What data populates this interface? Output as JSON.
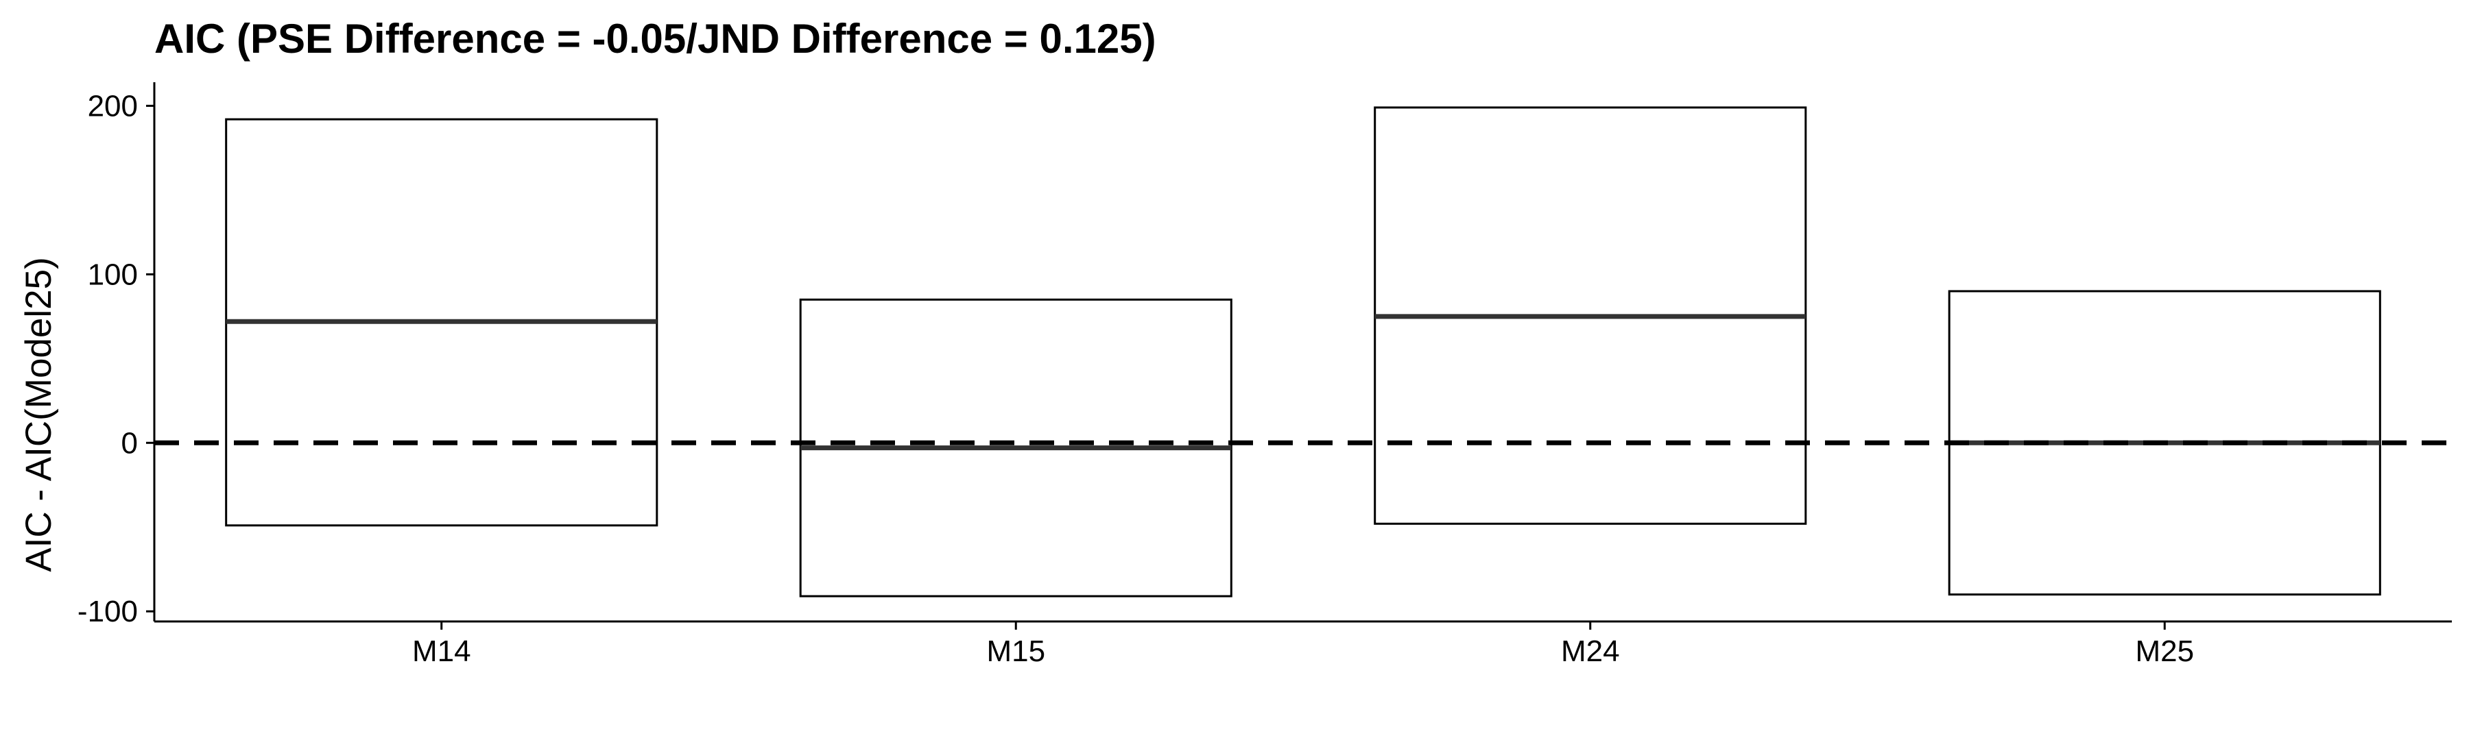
{
  "chart_data": {
    "type": "boxplot",
    "title": "AIC (PSE Difference = -0.05/JND Difference = 0.125)",
    "xlabel": "",
    "ylabel": "AIC - AIC(Model25)",
    "categories": [
      "M14",
      "M15",
      "M24",
      "M25"
    ],
    "boxes": [
      {
        "category": "M14",
        "lower": -49,
        "median": 72,
        "upper": 192
      },
      {
        "category": "M15",
        "lower": -91,
        "median": -3,
        "upper": 85
      },
      {
        "category": "M24",
        "lower": -48,
        "median": 75,
        "upper": 199
      },
      {
        "category": "M25",
        "lower": -90,
        "median": 0,
        "upper": 90
      }
    ],
    "reference_line": {
      "y": 0,
      "style": "dashed"
    },
    "yticks": [
      -100,
      0,
      100,
      200
    ],
    "ylim": [
      -106,
      214
    ],
    "grid": false,
    "legend": "none",
    "colors": {
      "box_fill": "#ffffff",
      "box_stroke": "#000000",
      "median": "#333333",
      "axis": "#000000"
    }
  }
}
